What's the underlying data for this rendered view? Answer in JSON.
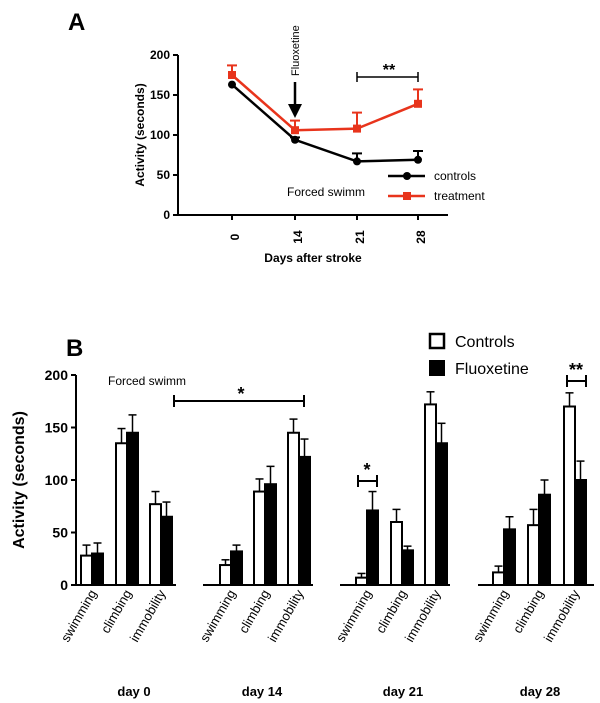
{
  "chart_data": [
    {
      "panel": "A",
      "type": "line",
      "xlabel": "Days after stroke",
      "ylabel": "Activity (seconds)",
      "categories": [
        "0",
        "14",
        "21",
        "28"
      ],
      "ylim": [
        0,
        200
      ],
      "yticks": [
        0,
        50,
        100,
        150,
        200
      ],
      "annotation": "Forced swimm",
      "arrow_label": "Fluoxetine",
      "significance": "**",
      "colors": {
        "controls": "#000000",
        "treatment": "#e8341c"
      },
      "series": [
        {
          "name": "controls",
          "values": [
            163,
            94,
            67,
            69
          ],
          "errors": [
            0,
            3,
            10,
            11
          ]
        },
        {
          "name": "treatment",
          "values": [
            175,
            106,
            108,
            139
          ],
          "errors": [
            12,
            12,
            20,
            18
          ]
        }
      ]
    },
    {
      "panel": "B",
      "type": "bar",
      "ylabel": "Activity (seconds)",
      "ylim": [
        0,
        200
      ],
      "yticks": [
        0,
        50,
        100,
        150,
        200
      ],
      "annotation": "Forced swimm",
      "colors": {
        "Controls": "#ffffff",
        "Fluoxetine": "#000000"
      },
      "groups": [
        {
          "day": "day 0",
          "categories": [
            "swimming",
            "climbing",
            "immobility"
          ],
          "Controls": [
            28,
            135,
            77
          ],
          "Controls_err": [
            10,
            14,
            12
          ],
          "Fluoxetine": [
            30,
            145,
            65
          ],
          "Fluoxetine_err": [
            10,
            17,
            14
          ]
        },
        {
          "day": "day 14",
          "categories": [
            "swimming",
            "climbing",
            "immobility"
          ],
          "Controls": [
            19,
            89,
            145
          ],
          "Controls_err": [
            5,
            12,
            13
          ],
          "Fluoxetine": [
            32,
            96,
            122
          ],
          "Fluoxetine_err": [
            6,
            17,
            17
          ]
        },
        {
          "day": "day 21",
          "categories": [
            "swimming",
            "climbing",
            "immobility"
          ],
          "Controls": [
            7,
            60,
            172
          ],
          "Controls_err": [
            4,
            12,
            12
          ],
          "Fluoxetine": [
            71,
            33,
            135
          ],
          "Fluoxetine_err": [
            18,
            4,
            19
          ]
        },
        {
          "day": "day 28",
          "categories": [
            "swimming",
            "climbing",
            "immobility"
          ],
          "Controls": [
            12,
            57,
            170
          ],
          "Controls_err": [
            6,
            15,
            13
          ],
          "Fluoxetine": [
            53,
            86,
            100
          ],
          "Fluoxetine_err": [
            12,
            14,
            18
          ]
        }
      ],
      "significance": [
        {
          "label": "*",
          "between": "day 0 immobility - day 14 immobility"
        },
        {
          "label": "*",
          "between": "day 21 swimming"
        },
        {
          "label": "**",
          "between": "day 28 immobility"
        }
      ]
    }
  ],
  "panels": {
    "a_letter": "A",
    "b_letter": "B"
  },
  "legend_b": {
    "controls": "Controls",
    "fluoxetine": "Fluoxetine"
  }
}
